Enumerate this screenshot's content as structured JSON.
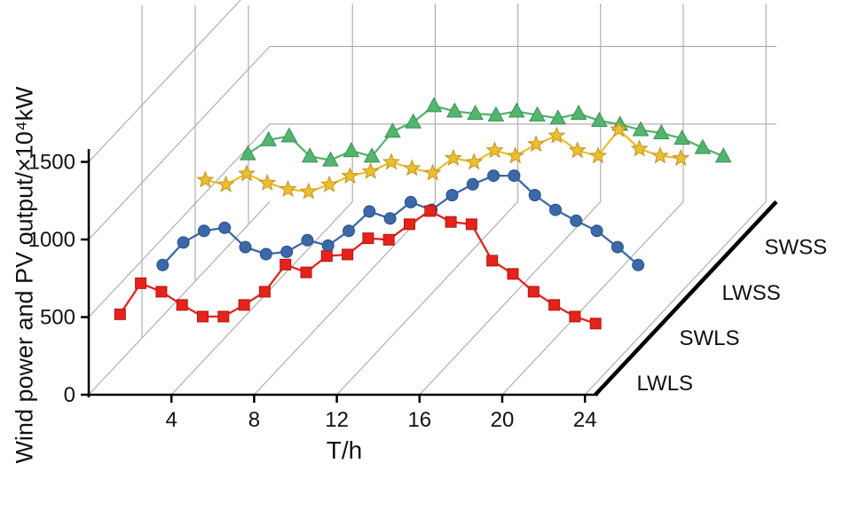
{
  "chart_data": {
    "type": "line",
    "projection": "3d",
    "title": "",
    "xlabel": "T/h",
    "ylabel": "Wind power and PV output/×10⁴kW",
    "x": [
      1,
      2,
      3,
      4,
      5,
      6,
      7,
      8,
      9,
      10,
      11,
      12,
      13,
      14,
      15,
      16,
      17,
      18,
      19,
      20,
      21,
      22,
      23,
      24
    ],
    "x_ticks": [
      4,
      8,
      12,
      16,
      20,
      24
    ],
    "y_ticks": [
      0,
      500,
      1000,
      1500
    ],
    "ylim": [
      0,
      1750
    ],
    "grid": true,
    "grid_color": "#a9a9a9",
    "axis_color": "#000000",
    "legend_position": "right-depth-axis",
    "depth_order_front_to_back": [
      "LWLS",
      "SWLS",
      "LWSS",
      "SWSS"
    ],
    "series": [
      {
        "name": "LWLS",
        "marker": "square",
        "color": "#e5231b",
        "edge": "#b0170f",
        "values": [
          445,
          645,
          590,
          505,
          430,
          430,
          505,
          590,
          765,
          715,
          820,
          830,
          935,
          925,
          1025,
          1110,
          1040,
          1025,
          790,
          705,
          590,
          505,
          430,
          385
        ]
      },
      {
        "name": "SWLS",
        "marker": "circle",
        "color": "#3b68a9",
        "edge": "#2a4f85",
        "values": [
          470,
          615,
          690,
          710,
          585,
          540,
          555,
          630,
          595,
          690,
          815,
          770,
          875,
          825,
          920,
          990,
          1045,
          1045,
          920,
          825,
          755,
          690,
          585,
          470
        ]
      },
      {
        "name": "LWSS",
        "marker": "star",
        "color": "#ecbe30",
        "edge": "#c2951c",
        "values": [
          725,
          695,
          765,
          705,
          665,
          650,
          695,
          750,
          780,
          840,
          800,
          770,
          865,
          840,
          915,
          880,
          955,
          1010,
          915,
          880,
          1050,
          925,
          880,
          865
        ]
      },
      {
        "name": "SWSS",
        "marker": "triangle",
        "color": "#53b56e",
        "edge": "#3c9155",
        "values": [
          600,
          690,
          715,
          585,
          560,
          620,
          585,
          745,
          805,
          910,
          875,
          860,
          850,
          875,
          850,
          830,
          860,
          815,
          790,
          755,
          735,
          700,
          640,
          585
        ]
      }
    ]
  }
}
